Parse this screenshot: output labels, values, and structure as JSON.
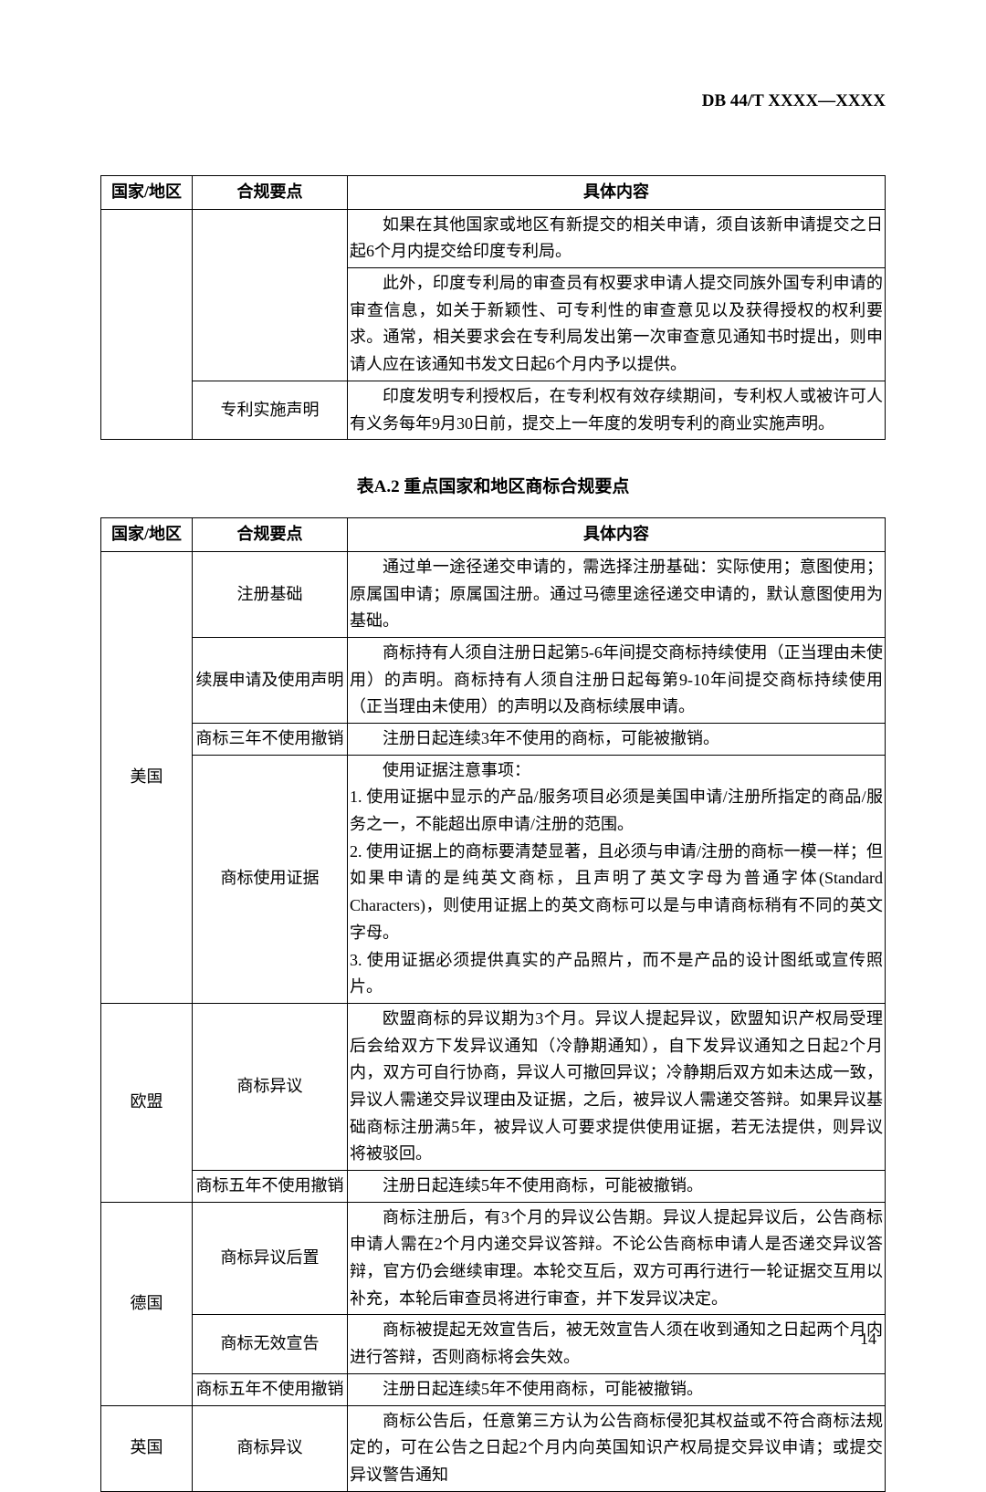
{
  "header": "DB 44/T XXXX—XXXX",
  "table1": {
    "headers": [
      "国家/地区",
      "合规要点",
      "具体内容"
    ],
    "rows": [
      {
        "country": "",
        "point": "",
        "content": "如果在其他国家或地区有新提交的相关申请，须自该新申请提交之日起6个月内提交给印度专利局。"
      },
      {
        "country": "",
        "point": "",
        "content": "此外，印度专利局的审查员有权要求申请人提交同族外国专利申请的审查信息，如关于新颖性、可专利性的审查意见以及获得授权的权利要求。通常，相关要求会在专利局发出第一次审查意见通知书时提出，则申请人应在该通知书发文日起6个月内予以提供。"
      },
      {
        "country": "",
        "point": "专利实施声明",
        "content": "印度发明专利授权后，在专利权有效存续期间，专利权人或被许可人有义务每年9月30日前，提交上一年度的发明专利的商业实施声明。"
      }
    ]
  },
  "table2Title": "表A.2 重点国家和地区商标合规要点",
  "table2": {
    "headers": [
      "国家/地区",
      "合规要点",
      "具体内容"
    ],
    "groups": [
      {
        "country": "美国",
        "rows": [
          {
            "point": "注册基础",
            "content": "通过单一途径递交申请的，需选择注册基础：实际使用；意图使用；原属国申请；原属国注册。通过马德里途径递交申请的，默认意图使用为基础。"
          },
          {
            "point": "续展申请及使用声明",
            "content": "商标持有人须自注册日起第5-6年间提交商标持续使用（正当理由未使用）的声明。商标持有人须自注册日起每第9-10年间提交商标持续使用（正当理由未使用）的声明以及商标续展申请。"
          },
          {
            "point": "商标三年不使用撤销",
            "content": "注册日起连续3年不使用的商标，可能被撤销。"
          },
          {
            "point": "商标使用证据",
            "content": "使用证据注意事项：\n1. 使用证据中显示的产品/服务项目必须是美国申请/注册所指定的商品/服务之一，不能超出原申请/注册的范围。\n2. 使用证据上的商标要清楚显著，且必须与申请/注册的商标一模一样；但如果申请的是纯英文商标，且声明了英文字母为普通字体(Standard Characters)，则使用证据上的英文商标可以是与申请商标稍有不同的英文字母。\n3. 使用证据必须提供真实的产品照片，而不是产品的设计图纸或宣传照片。"
          }
        ]
      },
      {
        "country": "欧盟",
        "rows": [
          {
            "point": "商标异议",
            "content": "欧盟商标的异议期为3个月。异议人提起异议，欧盟知识产权局受理后会给双方下发异议通知（冷静期通知），自下发异议通知之日起2个月内，双方可自行协商，异议人可撤回异议；冷静期后双方如未达成一致，异议人需递交异议理由及证据，之后，被异议人需递交答辩。如果异议基础商标注册满5年，被异议人可要求提供使用证据，若无法提供，则异议将被驳回。"
          },
          {
            "point": "商标五年不使用撤销",
            "content": "注册日起连续5年不使用商标，可能被撤销。"
          }
        ]
      },
      {
        "country": "德国",
        "rows": [
          {
            "point": "商标异议后置",
            "content": "商标注册后，有3个月的异议公告期。异议人提起异议后，公告商标申请人需在2个月内递交异议答辩。不论公告商标申请人是否递交异议答辩，官方仍会继续审理。本轮交互后，双方可再行进行一轮证据交互用以补充，本轮后审查员将进行审查，并下发异议决定。"
          },
          {
            "point": "商标无效宣告",
            "content": "商标被提起无效宣告后，被无效宣告人须在收到通知之日起两个月内进行答辩，否则商标将会失效。"
          },
          {
            "point": "商标五年不使用撤销",
            "content": "注册日起连续5年不使用商标，可能被撤销。"
          }
        ]
      },
      {
        "country": "英国",
        "rows": [
          {
            "point": "商标异议",
            "content": "商标公告后，任意第三方认为公告商标侵犯其权益或不符合商标法规定的，可在公告之日起2个月内向英国知识产权局提交异议申请；或提交异议警告通知"
          }
        ]
      }
    ]
  },
  "pageNumber": "14"
}
